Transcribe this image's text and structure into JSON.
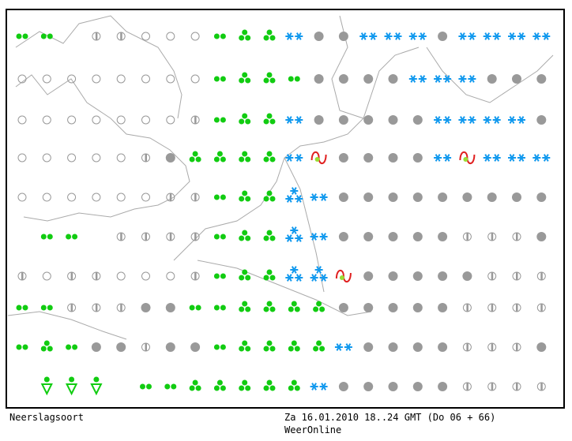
{
  "legend": {
    "title": "Neerslagsoort"
  },
  "footer": {
    "time": "Za 16.01.2010 18..24 GMT (Do 06 + 66)",
    "source": "WeerOnline"
  }
}
